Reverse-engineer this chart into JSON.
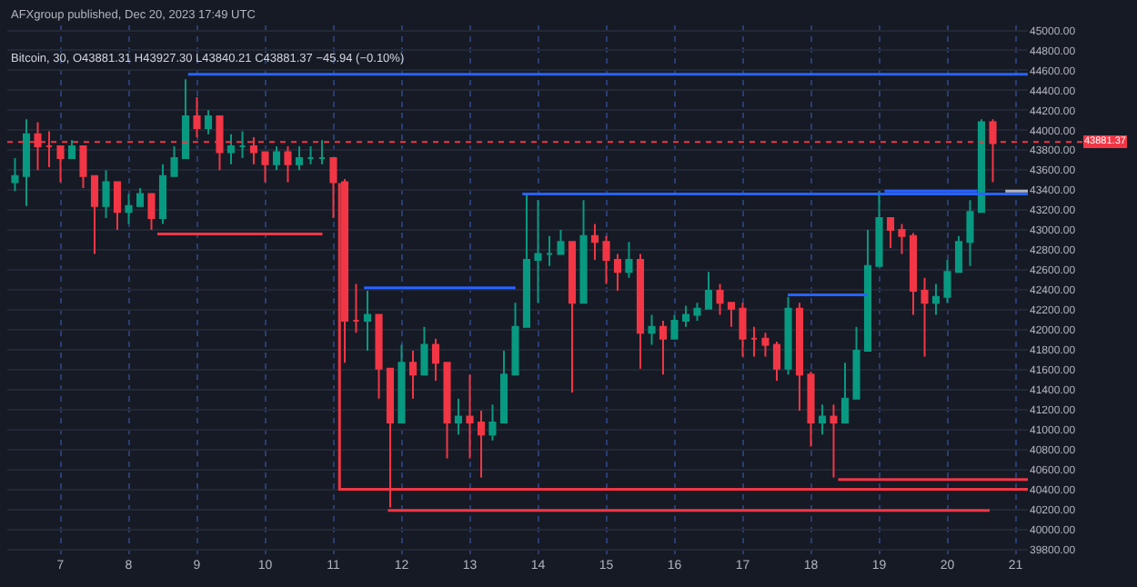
{
  "chart_data": {
    "type": "candlestick",
    "title": "AFXgroup published, Dec 20, 2023 17:49 UTC",
    "subtitle": "Bitcoin, 30, O43881.31 H43927.30 L43840.21 C43881.37 −45.94 (−0.10%)",
    "x": [
      6.333,
      6.5,
      6.667,
      6.833,
      7,
      7.167,
      7.333,
      7.5,
      7.667,
      7.833,
      8,
      8.167,
      8.333,
      8.5,
      8.667,
      8.833,
      9,
      9.167,
      9.333,
      9.5,
      9.667,
      9.833,
      10,
      10.167,
      10.333,
      10.5,
      10.667,
      10.833,
      11,
      11.167,
      11.333,
      11.5,
      11.667,
      11.833,
      12,
      12.167,
      12.333,
      12.5,
      12.667,
      12.833,
      13,
      13.167,
      13.333,
      13.5,
      13.667,
      13.833,
      14,
      14.167,
      14.333,
      14.5,
      14.667,
      14.833,
      15,
      15.167,
      15.333,
      15.5,
      15.667,
      15.833,
      16,
      16.167,
      16.333,
      16.5,
      16.667,
      16.833,
      17,
      17.167,
      17.333,
      17.5,
      17.667,
      17.833,
      18,
      18.167,
      18.333,
      18.5,
      18.667,
      18.833,
      19,
      19.167,
      19.333,
      19.5,
      19.667,
      19.833,
      20,
      20.167,
      20.333,
      20.5,
      20.667
    ],
    "ohlc": [
      [
        43480,
        43720,
        43390,
        43540
      ],
      [
        43540,
        44110,
        43240,
        43960
      ],
      [
        43960,
        44080,
        43600,
        43840
      ],
      [
        43840,
        43990,
        43630,
        43840
      ],
      [
        43840,
        43840,
        43480,
        43720
      ],
      [
        43720,
        43900,
        43720,
        43840
      ],
      [
        43840,
        43840,
        43420,
        43540
      ],
      [
        43540,
        43540,
        42760,
        43240
      ],
      [
        43240,
        43600,
        43120,
        43480
      ],
      [
        43480,
        43480,
        43000,
        43180
      ],
      [
        43180,
        43360,
        43060,
        43240
      ],
      [
        43240,
        43420,
        43240,
        43360
      ],
      [
        43360,
        43360,
        43000,
        43120
      ],
      [
        43120,
        43660,
        43060,
        43540
      ],
      [
        43540,
        43840,
        43540,
        43720
      ],
      [
        43720,
        44510,
        43720,
        44140
      ],
      [
        44140,
        44330,
        43930,
        44020
      ],
      [
        44020,
        44200,
        43960,
        44140
      ],
      [
        44140,
        44140,
        43600,
        43780
      ],
      [
        43780,
        43960,
        43660,
        43840
      ],
      [
        43840,
        43990,
        43720,
        43840
      ],
      [
        43840,
        43930,
        43660,
        43780
      ],
      [
        43780,
        43780,
        43480,
        43660
      ],
      [
        43660,
        43840,
        43600,
        43780
      ],
      [
        43780,
        43840,
        43480,
        43660
      ],
      [
        43660,
        43840,
        43600,
        43720
      ],
      [
        43720,
        43840,
        43660,
        43720
      ],
      [
        43720,
        43900,
        43660,
        43720
      ],
      [
        43720,
        43720,
        43120,
        43480
      ],
      [
        43480,
        43510,
        41670,
        42090
      ],
      [
        42090,
        42460,
        41970,
        42090
      ],
      [
        42090,
        42390,
        41790,
        42150
      ],
      [
        42150,
        42150,
        41310,
        41610
      ],
      [
        41610,
        41610,
        40220,
        41070
      ],
      [
        41070,
        41850,
        41070,
        41670
      ],
      [
        41670,
        41790,
        41310,
        41550
      ],
      [
        41550,
        42030,
        41550,
        41850
      ],
      [
        41850,
        41910,
        41490,
        41670
      ],
      [
        41670,
        41670,
        40710,
        41070
      ],
      [
        41070,
        41310,
        40950,
        41130
      ],
      [
        41130,
        41550,
        40710,
        41070
      ],
      [
        41070,
        41190,
        40520,
        40950
      ],
      [
        40950,
        41250,
        40890,
        41070
      ],
      [
        41070,
        41790,
        41070,
        41550
      ],
      [
        41550,
        42270,
        41550,
        42030
      ],
      [
        42030,
        43360,
        42030,
        42700
      ],
      [
        42700,
        43300,
        42270,
        42760
      ],
      [
        42760,
        42940,
        42640,
        42760
      ],
      [
        42760,
        43000,
        42760,
        42880
      ],
      [
        42880,
        42880,
        41370,
        42270
      ],
      [
        42270,
        43300,
        42270,
        42940
      ],
      [
        42940,
        43060,
        42700,
        42880
      ],
      [
        42880,
        42940,
        42460,
        42700
      ],
      [
        42700,
        42760,
        42390,
        42580
      ],
      [
        42580,
        42880,
        42520,
        42700
      ],
      [
        42700,
        42760,
        41610,
        41970
      ],
      [
        41970,
        42150,
        41850,
        42030
      ],
      [
        42030,
        42090,
        41550,
        41910
      ],
      [
        41910,
        42150,
        41910,
        42090
      ],
      [
        42090,
        42240,
        42030,
        42150
      ],
      [
        42150,
        42270,
        42090,
        42210
      ],
      [
        42210,
        42580,
        42210,
        42390
      ],
      [
        42390,
        42460,
        42150,
        42270
      ],
      [
        42270,
        42270,
        42030,
        42210
      ],
      [
        42210,
        42270,
        41730,
        41910
      ],
      [
        41910,
        42030,
        41730,
        41910
      ],
      [
        41910,
        41970,
        41730,
        41850
      ],
      [
        41850,
        41880,
        41490,
        41610
      ],
      [
        41610,
        42330,
        41550,
        42210
      ],
      [
        42210,
        42270,
        41190,
        41550
      ],
      [
        41550,
        41580,
        40830,
        41070
      ],
      [
        41070,
        41250,
        40950,
        41130
      ],
      [
        41130,
        41250,
        40520,
        41070
      ],
      [
        41070,
        41670,
        41070,
        41310
      ],
      [
        41310,
        42030,
        41310,
        41790
      ],
      [
        41790,
        43000,
        41790,
        42640
      ],
      [
        42640,
        43390,
        42640,
        43120
      ],
      [
        43120,
        43120,
        42820,
        43000
      ],
      [
        43000,
        43060,
        42760,
        42940
      ],
      [
        42940,
        42970,
        42150,
        42390
      ],
      [
        42390,
        42520,
        41730,
        42270
      ],
      [
        42270,
        42460,
        42150,
        42330
      ],
      [
        42330,
        42700,
        42270,
        42580
      ],
      [
        42580,
        42940,
        42580,
        42880
      ],
      [
        42880,
        43300,
        42640,
        43180
      ],
      [
        43180,
        44110,
        43180,
        44080
      ],
      [
        44080,
        44110,
        43480,
        43870
      ]
    ],
    "series": [
      {
        "type": "line",
        "color": "#2962ff",
        "x": [
          8.87,
          21.18
        ],
        "values": [
          44560,
          44560
        ]
      },
      {
        "type": "line",
        "color": "#f23645",
        "x": [
          8.42,
          10.84
        ],
        "values": [
          42960,
          42960
        ]
      },
      {
        "type": "line",
        "color": "#f23645",
        "x": [
          11.09,
          11.09,
          21.18
        ],
        "values": [
          43470,
          40400,
          40400
        ]
      },
      {
        "type": "line",
        "color": "#f23645",
        "x": [
          11.8,
          20.62
        ],
        "values": [
          40190,
          40190
        ]
      },
      {
        "type": "line",
        "color": "#2962ff",
        "x": [
          11.45,
          13.67
        ],
        "values": [
          42420,
          42420
        ]
      },
      {
        "type": "line",
        "color": "#2962ff",
        "x": [
          13.77,
          21.18
        ],
        "values": [
          43360,
          43360
        ]
      },
      {
        "type": "line",
        "color": "#2962ff",
        "x": [
          17.66,
          18.83
        ],
        "values": [
          42350,
          42350
        ]
      },
      {
        "type": "line",
        "color": "#f23645",
        "x": [
          18.4,
          21.18
        ],
        "values": [
          40500,
          40500
        ]
      },
      {
        "type": "line",
        "color": "#2962ff",
        "x": [
          19.08,
          20.44
        ],
        "values": [
          43390,
          43390
        ]
      },
      {
        "type": "line",
        "color": "#b2b5be",
        "x": [
          20.85,
          21.18
        ],
        "values": [
          43390,
          43390
        ]
      }
    ],
    "ref_lines": [
      {
        "axis": "y",
        "value": 43881.37,
        "label": "43881.37",
        "color": "#f23645",
        "line_style": "dotted"
      }
    ],
    "xlim": [
      6.22,
      21.18
    ],
    "xticks": [
      7,
      8,
      9,
      10,
      11,
      12,
      13,
      14,
      15,
      16,
      17,
      18,
      19,
      20,
      21
    ],
    "ylim": [
      39750,
      45050
    ],
    "yticks": [
      {
        "value": 39800,
        "label": "39800.00"
      },
      {
        "value": 40000,
        "label": "40000.00"
      },
      {
        "value": 40200,
        "label": "40200.00"
      },
      {
        "value": 40400,
        "label": "40400.00"
      },
      {
        "value": 40600,
        "label": "40600.00"
      },
      {
        "value": 40800,
        "label": "40800.00"
      },
      {
        "value": 41000,
        "label": "41000.00"
      },
      {
        "value": 41200,
        "label": "41200.00"
      },
      {
        "value": 41400,
        "label": "41400.00"
      },
      {
        "value": 41600,
        "label": "41600.00"
      },
      {
        "value": 41800,
        "label": "41800.00"
      },
      {
        "value": 42000,
        "label": "42000.00"
      },
      {
        "value": 42200,
        "label": "42200.00"
      },
      {
        "value": 42400,
        "label": "42400.00"
      },
      {
        "value": 42600,
        "label": "42600.00"
      },
      {
        "value": 42800,
        "label": "42800.00"
      },
      {
        "value": 43000,
        "label": "43000.00"
      },
      {
        "value": 43200,
        "label": "43200.00"
      },
      {
        "value": 43400,
        "label": "43400.00"
      },
      {
        "value": 43600,
        "label": "43600.00"
      },
      {
        "value": 43800,
        "label": "43800.00"
      },
      {
        "value": 44000,
        "label": "44000.00"
      },
      {
        "value": 44200,
        "label": "44200.00"
      },
      {
        "value": 44400,
        "label": "44400.00"
      },
      {
        "value": 44600,
        "label": "44600.00"
      },
      {
        "value": 44800,
        "label": "44800.00"
      },
      {
        "value": 45000,
        "label": "45000.00"
      }
    ],
    "grid": true
  }
}
